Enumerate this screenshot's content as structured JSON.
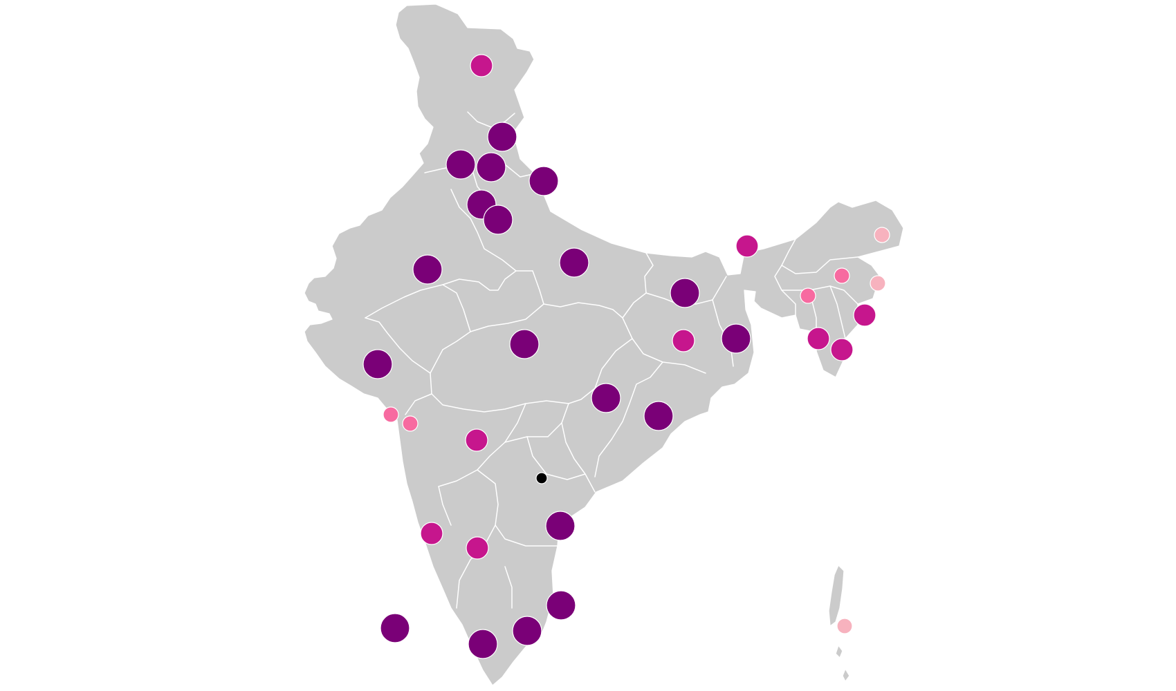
{
  "map": {
    "background": "#ffffff",
    "land_color": "#cbcbcb",
    "border_color": "#ffffff",
    "legend_colors": {
      "dark_purple": "#7a0077",
      "magenta": "#c6168d",
      "pink": "#f76aa0",
      "light_pink": "#f7b2be",
      "black": "#000000"
    },
    "markers": [
      {
        "id": "marker-kashmir",
        "size": "medium",
        "color": "magenta"
      },
      {
        "id": "marker-himachal",
        "size": "large",
        "color": "dark_purple"
      },
      {
        "id": "marker-punjab",
        "size": "large",
        "color": "dark_purple"
      },
      {
        "id": "marker-chandigarh",
        "size": "large",
        "color": "dark_purple"
      },
      {
        "id": "marker-uttarakhand",
        "size": "large",
        "color": "dark_purple"
      },
      {
        "id": "marker-haryana",
        "size": "large",
        "color": "dark_purple"
      },
      {
        "id": "marker-delhi",
        "size": "large",
        "color": "dark_purple"
      },
      {
        "id": "marker-rajasthan",
        "size": "large",
        "color": "dark_purple"
      },
      {
        "id": "marker-uttar-pradesh",
        "size": "large",
        "color": "dark_purple"
      },
      {
        "id": "marker-bihar",
        "size": "large",
        "color": "dark_purple"
      },
      {
        "id": "marker-sikkim",
        "size": "medium",
        "color": "magenta"
      },
      {
        "id": "marker-west-bengal",
        "size": "large",
        "color": "dark_purple"
      },
      {
        "id": "marker-jharkhand",
        "size": "medium",
        "color": "magenta"
      },
      {
        "id": "marker-madhya-pradesh",
        "size": "large",
        "color": "dark_purple"
      },
      {
        "id": "marker-gujarat",
        "size": "large",
        "color": "dark_purple"
      },
      {
        "id": "marker-daman-diu",
        "size": "small",
        "color": "pink"
      },
      {
        "id": "marker-dadra-nagar-haveli",
        "size": "small",
        "color": "pink"
      },
      {
        "id": "marker-chhattisgarh",
        "size": "large",
        "color": "dark_purple"
      },
      {
        "id": "marker-odisha",
        "size": "large",
        "color": "dark_purple"
      },
      {
        "id": "marker-maharashtra",
        "size": "medium",
        "color": "magenta"
      },
      {
        "id": "marker-telangana",
        "size": "tiny",
        "color": "black"
      },
      {
        "id": "marker-andhra-pradesh",
        "size": "large",
        "color": "dark_purple"
      },
      {
        "id": "marker-goa",
        "size": "medium",
        "color": "magenta"
      },
      {
        "id": "marker-karnataka",
        "size": "medium",
        "color": "magenta"
      },
      {
        "id": "marker-puducherry",
        "size": "large",
        "color": "dark_purple"
      },
      {
        "id": "marker-tamil-nadu",
        "size": "large",
        "color": "dark_purple"
      },
      {
        "id": "marker-kerala",
        "size": "large",
        "color": "dark_purple"
      },
      {
        "id": "marker-lakshadweep",
        "size": "large",
        "color": "dark_purple"
      },
      {
        "id": "marker-arunachal-pradesh",
        "size": "small",
        "color": "light_pink"
      },
      {
        "id": "marker-assam",
        "size": "small",
        "color": "pink"
      },
      {
        "id": "marker-nagaland",
        "size": "small",
        "color": "light_pink"
      },
      {
        "id": "marker-meghalaya",
        "size": "small",
        "color": "pink"
      },
      {
        "id": "marker-manipur",
        "size": "medium",
        "color": "magenta"
      },
      {
        "id": "marker-tripura",
        "size": "medium",
        "color": "magenta"
      },
      {
        "id": "marker-mizoram",
        "size": "medium",
        "color": "magenta"
      },
      {
        "id": "marker-andaman-nicobar",
        "size": "small",
        "color": "light_pink"
      }
    ]
  }
}
